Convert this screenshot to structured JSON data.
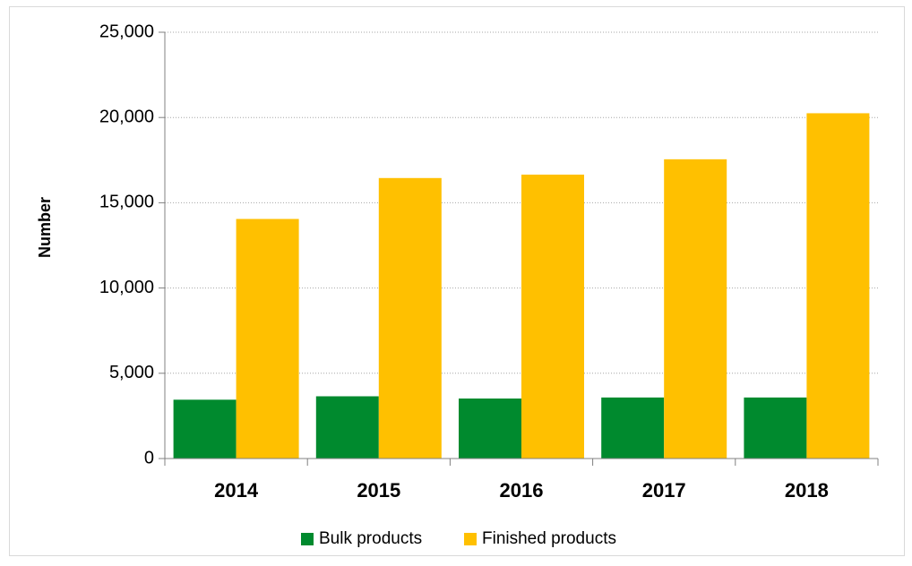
{
  "chart_data": {
    "type": "bar",
    "categories": [
      "2014",
      "2015",
      "2016",
      "2017",
      "2018"
    ],
    "series": [
      {
        "name": "Bulk products",
        "color": "#008a2e",
        "values": [
          3450,
          3650,
          3520,
          3580,
          3580
        ]
      },
      {
        "name": "Finished products",
        "color": "#ffc000",
        "values": [
          14050,
          16450,
          16650,
          17550,
          20250
        ]
      }
    ],
    "xlabel": "",
    "ylabel": "Number",
    "ylim": [
      0,
      25000
    ],
    "yticks": [
      0,
      5000,
      10000,
      15000,
      20000,
      25000
    ],
    "ytick_labels": [
      "0",
      "5,000",
      "10,000",
      "15,000",
      "20,000",
      "25,000"
    ],
    "grid": "horizontal dotted",
    "legend_position": "bottom"
  }
}
